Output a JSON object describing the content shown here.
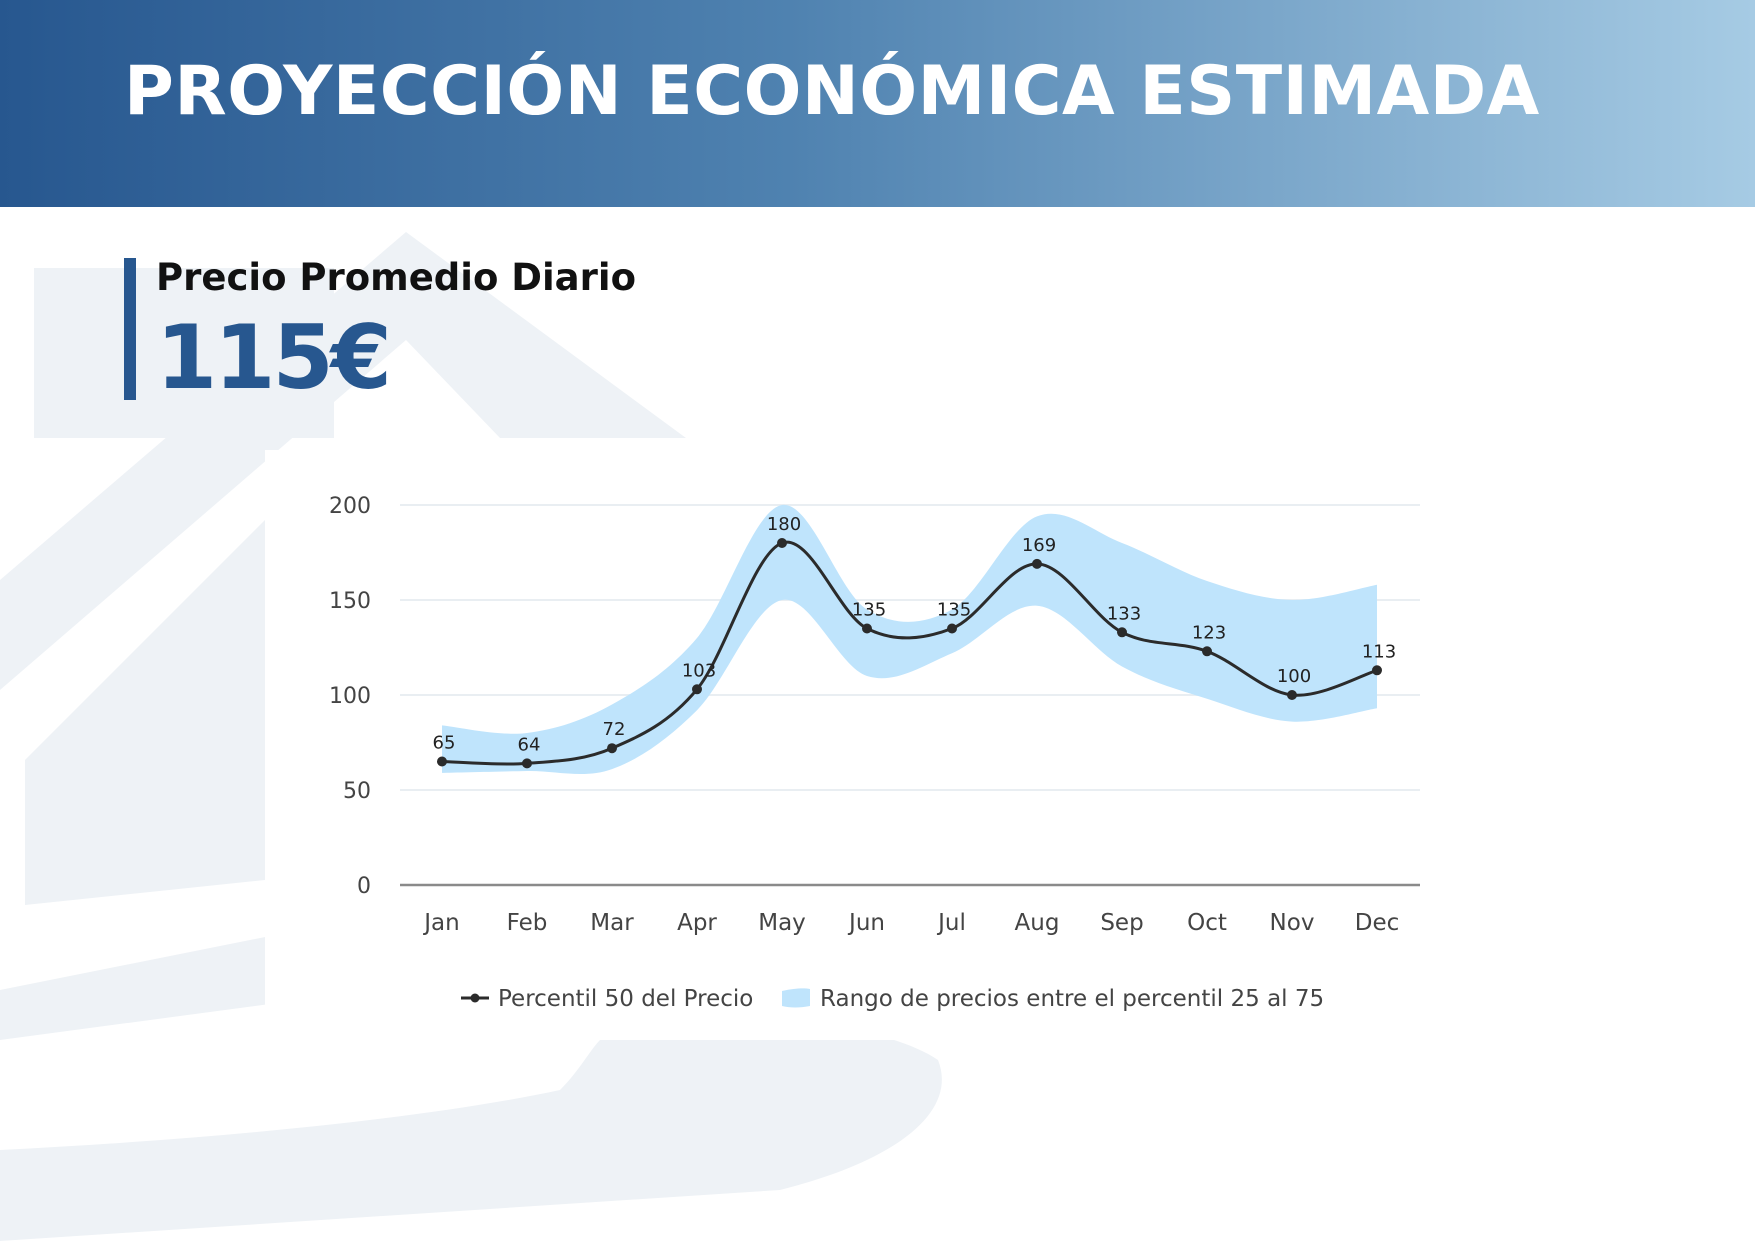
{
  "header": {
    "title": "PROYECCIÓN ECONÓMICA ESTIMADA"
  },
  "kpi": {
    "label": "Precio Promedio Diario",
    "value": "115€"
  },
  "colors": {
    "brand_dark": "#27578f",
    "band": "#bfe4fc",
    "line": "#2b2b2b",
    "grid": "#e9eef2",
    "watermark": "#eef2f6"
  },
  "chart_data": {
    "type": "line",
    "categories": [
      "Jan",
      "Feb",
      "Mar",
      "Apr",
      "May",
      "Jun",
      "Jul",
      "Aug",
      "Sep",
      "Oct",
      "Nov",
      "Dec"
    ],
    "series": [
      {
        "name": "Percentil 50 del Precio",
        "values": [
          65,
          64,
          72,
          103,
          180,
          135,
          135,
          169,
          133,
          123,
          100,
          113
        ],
        "data_labels": [
          "65",
          "64",
          "72",
          "103",
          "180",
          "135",
          "135",
          "169",
          "133",
          "123",
          "100",
          "113"
        ]
      },
      {
        "name": "Rango de precios entre el percentil 25 al 75",
        "type": "area-range",
        "low": [
          59,
          60,
          61,
          92,
          150,
          110,
          122,
          147,
          115,
          98,
          86,
          93
        ],
        "high": [
          84,
          80,
          95,
          130,
          200,
          145,
          145,
          194,
          180,
          160,
          150,
          158
        ]
      }
    ],
    "ylim": [
      0,
      200
    ],
    "yticks": [
      0,
      50,
      100,
      150,
      200
    ],
    "ytick_labels": [
      "0",
      "50",
      "100",
      "150",
      "200"
    ],
    "grid": true,
    "legend_position": "bottom",
    "title": "",
    "xlabel": "",
    "ylabel": ""
  }
}
